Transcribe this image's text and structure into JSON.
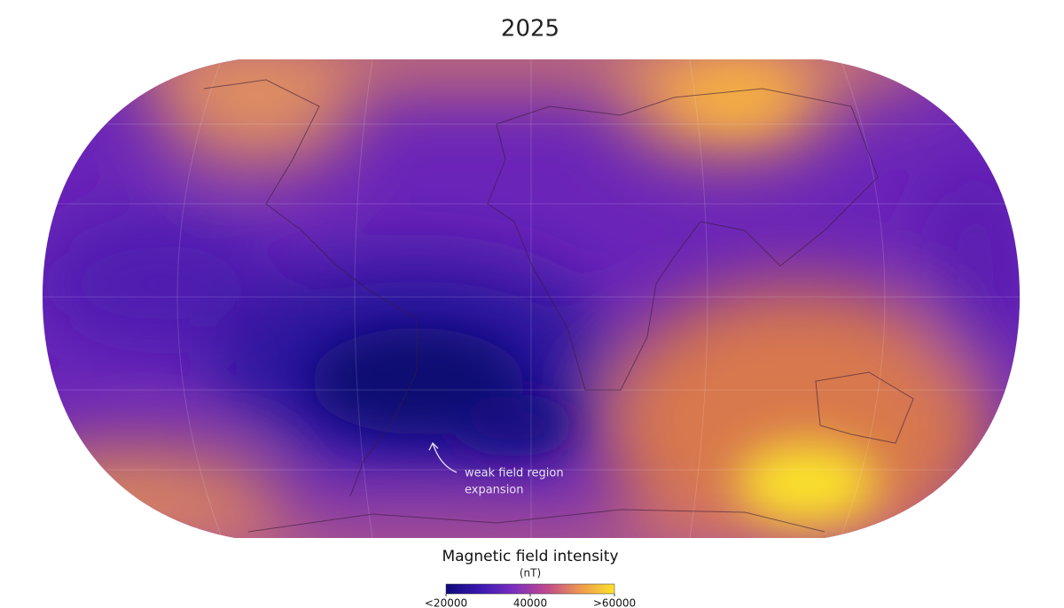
{
  "title": "2025",
  "annotation": [
    "weak field region",
    "expansion"
  ],
  "legend": {
    "title": "Magnetic field intensity",
    "unit": "(nT)",
    "range": [
      20000,
      60000
    ],
    "colors": [
      "#0d0a7a",
      "#3a18b0",
      "#7a2fc0",
      "#c04a8e",
      "#ee9a4e",
      "#fbe32c"
    ],
    "ticks": [
      {
        "value": 20000,
        "label": "<20000"
      },
      40000,
      {
        "value": 60000,
        "label": ">60000"
      }
    ]
  }
}
